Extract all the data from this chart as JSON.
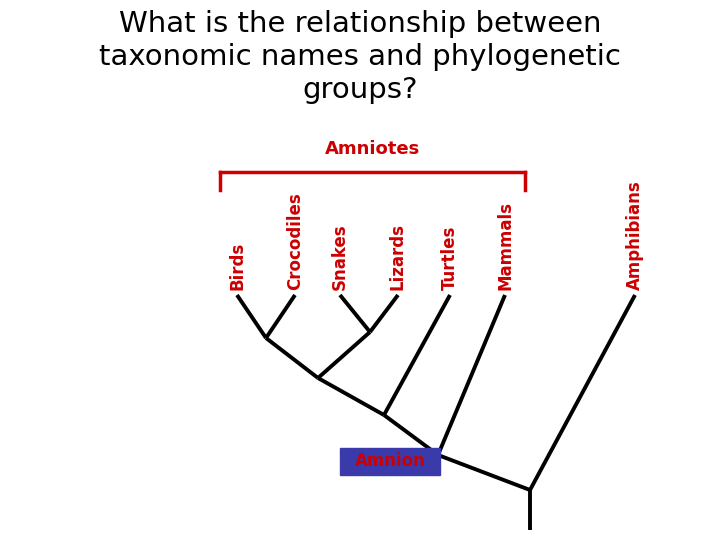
{
  "title_line1": "What is the relationship between",
  "title_line2": "taxonomic names and phylogenetic",
  "title_line3": "groups?",
  "title_fontsize": 21,
  "title_color": "black",
  "background_color": "white",
  "taxa": [
    "Birds",
    "Crocodiles",
    "Snakes",
    "Lizards",
    "Turtles",
    "Mammals",
    "Amphibians"
  ],
  "taxa_color": "#cc0000",
  "taxa_fontsize": 12,
  "line_color": "black",
  "line_width": 2.8,
  "amniotes_label": "Amniotes",
  "amniotes_color": "#cc0000",
  "amniotes_fontsize": 13,
  "amnion_label": "Amnion",
  "amnion_box_color": "#3a3aaa",
  "amnion_text_color": "#cc0000",
  "amnion_fontsize": 12
}
